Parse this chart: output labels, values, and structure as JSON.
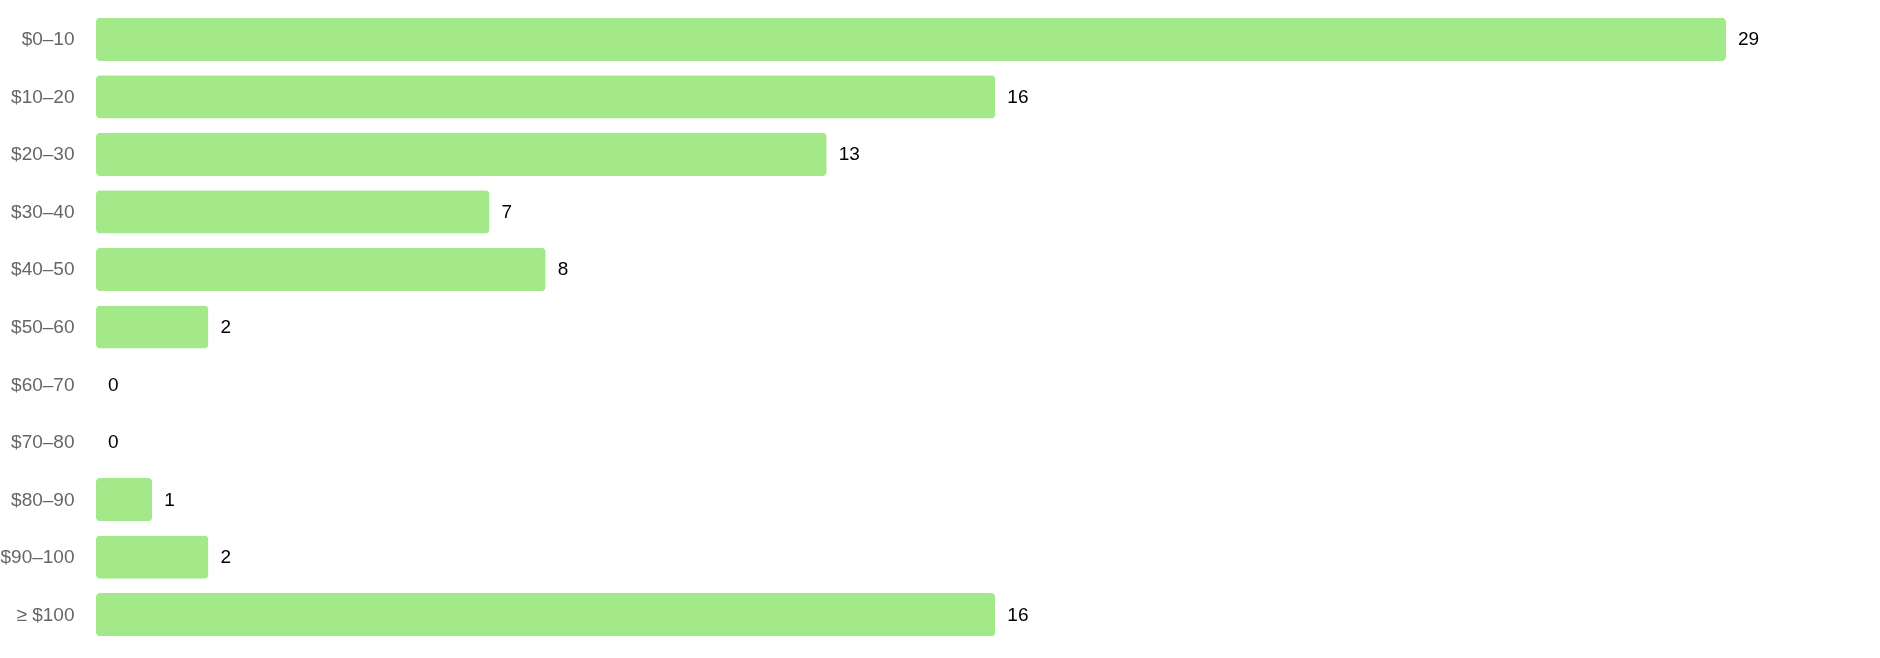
{
  "chart_data": {
    "type": "bar",
    "orientation": "horizontal",
    "data_labels": true,
    "color": "#a3e98a",
    "categories": [
      "$0–10",
      "$10–20",
      "$20–30",
      "$30–40",
      "$40–50",
      "$50–60",
      "$60–70",
      "$70–80",
      "$80–90",
      "$90–100",
      "≥ $100"
    ],
    "values": [
      29,
      16,
      13,
      7,
      8,
      2,
      0,
      0,
      1,
      2,
      16
    ]
  }
}
